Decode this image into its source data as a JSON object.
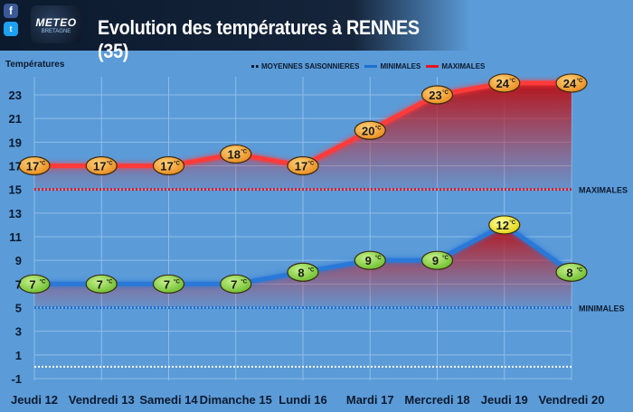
{
  "header": {
    "title": "Evolution des températures à RENNES (35)",
    "logo_text": "METEO",
    "logo_sub": "BRETAGNE",
    "facebook_glyph": "f",
    "twitter_glyph": "t"
  },
  "legend": {
    "moyennes": "MOYENNES SAISONNIERES",
    "minimales": "MINIMALES",
    "maximales": "MAXIMALES"
  },
  "colors": {
    "background": "#5b9bd8",
    "max_line": "#e8141a",
    "min_line": "#1f6fd0",
    "fill": "#b3141a"
  },
  "chart_data": {
    "type": "line",
    "ylabel": "Températures",
    "ylim": [
      -1,
      24
    ],
    "yticks": [
      -1,
      1,
      3,
      5,
      7,
      9,
      11,
      13,
      15,
      17,
      19,
      21,
      23
    ],
    "categories": [
      "Jeudi 12",
      "Vendredi 13",
      "Samedi 14",
      "Dimanche 15",
      "Lundi 16",
      "Mardi 17",
      "Mercredi 18",
      "Jeudi 19",
      "Vendredi 20"
    ],
    "series": [
      {
        "name": "MAXIMALES",
        "values": [
          17,
          17,
          17,
          18,
          17,
          20,
          23,
          24,
          24
        ]
      },
      {
        "name": "MINIMALES",
        "values": [
          7,
          7,
          7,
          7,
          8,
          9,
          9,
          12,
          8
        ]
      }
    ],
    "seasonal_averages": [
      {
        "label": "MAXIMALES",
        "value": 15
      },
      {
        "label": "MINIMALES",
        "value": 5
      }
    ],
    "unit": "°C",
    "grid": true
  }
}
